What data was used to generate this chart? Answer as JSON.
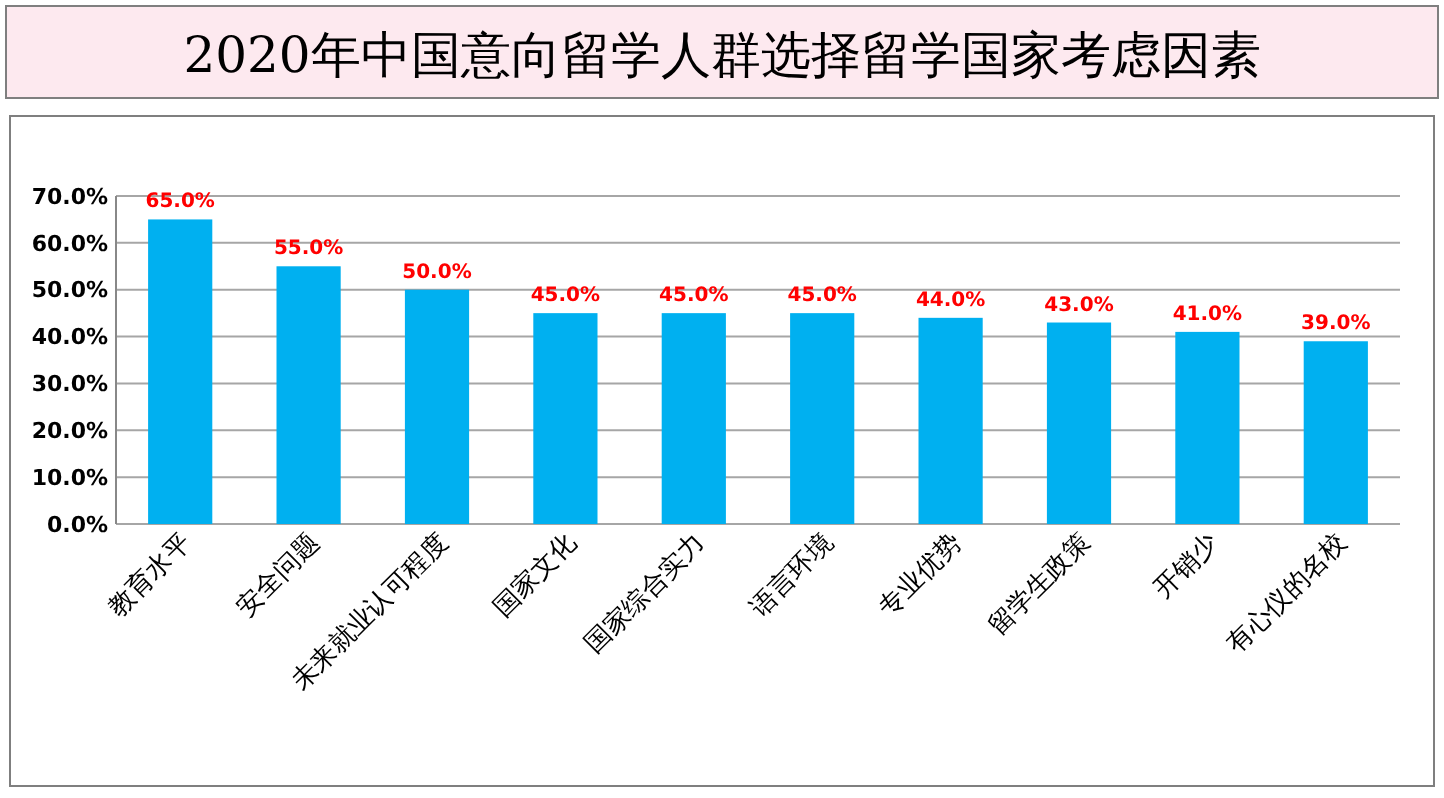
{
  "chart_data": {
    "type": "bar",
    "title": "2020年中国意向留学人群选择留学国家考虑因素",
    "categories": [
      "教育水平",
      "安全问题",
      "未来就业认可程度",
      "国家文化",
      "国家综合实力",
      "语言环境",
      "专业优势",
      "留学生政策",
      "开销少",
      "有心仪的名校"
    ],
    "values": [
      65,
      55,
      50,
      45,
      45,
      45,
      44,
      43,
      41,
      39
    ],
    "value_labels": [
      "65.0%",
      "55.0%",
      "50.0%",
      "45.0%",
      "45.0%",
      "45.0%",
      "44.0%",
      "43.0%",
      "41.0%",
      "39.0%"
    ],
    "color": "#00b0f0",
    "ylim": [
      0,
      70
    ],
    "yticks": [
      {
        "value": 0,
        "label": "0.0%"
      },
      {
        "value": 10,
        "label": "10.0%"
      },
      {
        "value": 20,
        "label": "20.0%"
      },
      {
        "value": 30,
        "label": "30.0%"
      },
      {
        "value": 40,
        "label": "40.0%"
      },
      {
        "value": 50,
        "label": "50.0%"
      },
      {
        "value": 60,
        "label": "60.0%"
      },
      {
        "value": 70,
        "label": "70.0%"
      }
    ],
    "grid": "y"
  }
}
